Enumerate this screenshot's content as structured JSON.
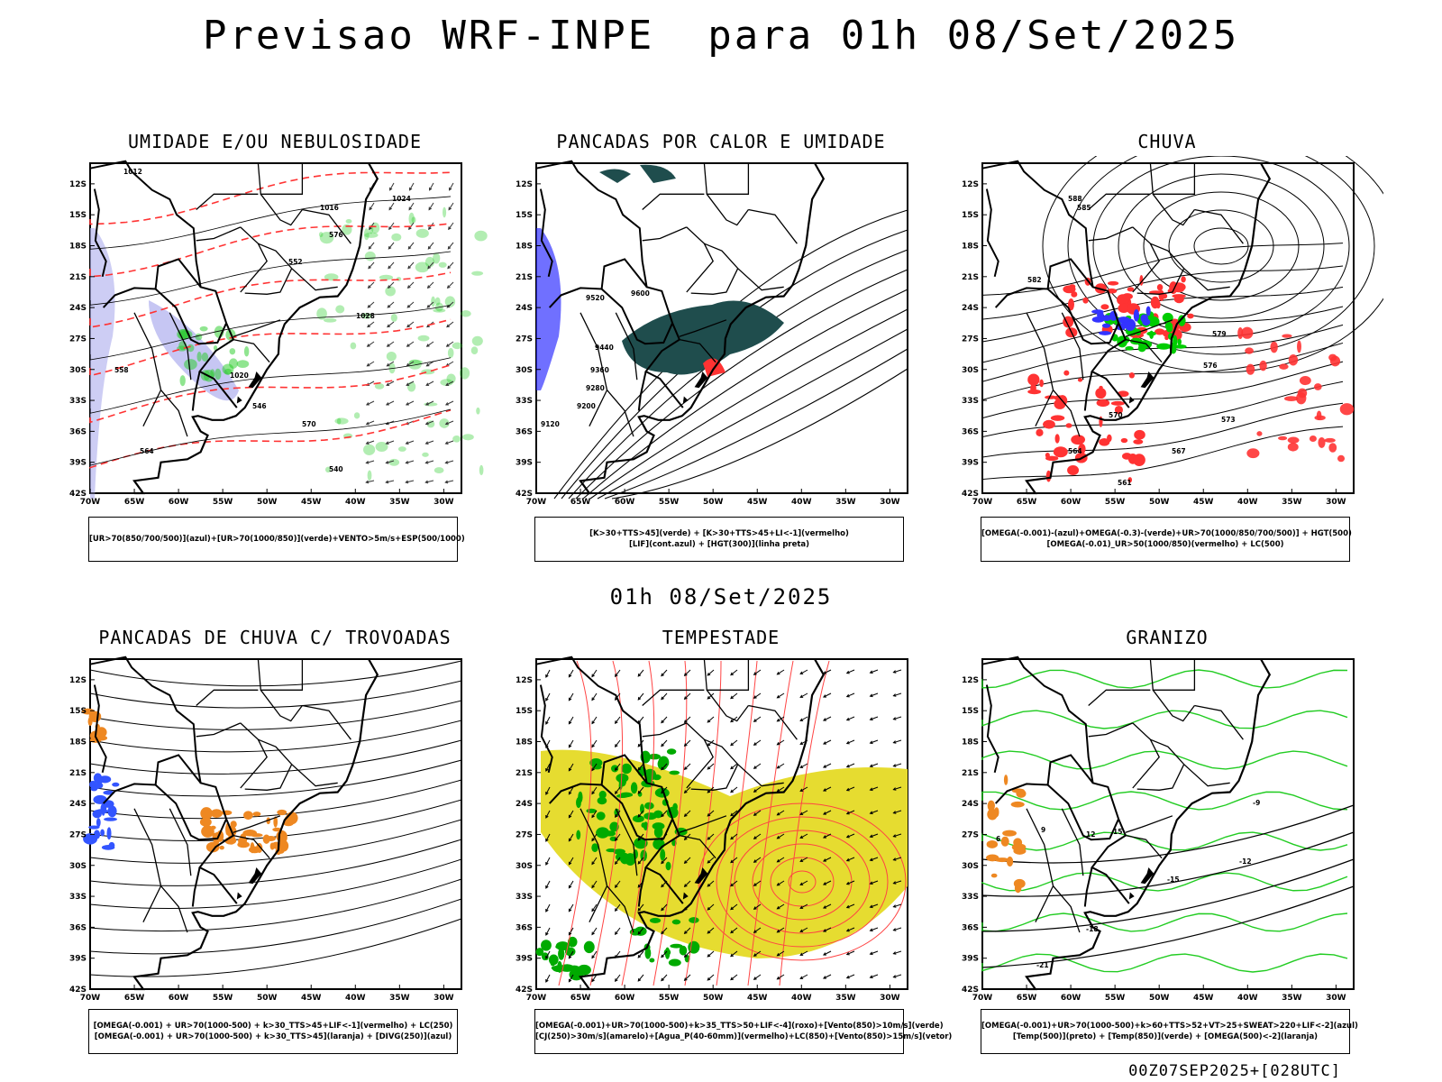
{
  "header": {
    "title": "Previsao WRF-INPE  para 01h 08/Set/2025",
    "mid_stamp": "01h 08/Set/2025",
    "footer_stamp": "00Z07SEP2025+[028UTC]"
  },
  "axes": {
    "lat_ticks": [
      "12S",
      "15S",
      "18S",
      "21S",
      "24S",
      "27S",
      "30S",
      "33S",
      "36S",
      "39S",
      "42S"
    ],
    "lon_ticks": [
      "70W",
      "65W",
      "60W",
      "55W",
      "50W",
      "45W",
      "40W",
      "35W",
      "30W"
    ]
  },
  "chart_data": [
    {
      "type": "map",
      "title": "UMIDADE E/OU NEBULOSIDADE",
      "legend_lines": [
        "[UR>70(850/700/500)](azul)+[UR>70(1000/850)](verde)+VENTO>5m/s+ESP(500/1000)"
      ],
      "contour_labels": [
        "1012",
        "1016",
        "1020",
        "1024",
        "1028",
        "540",
        "546",
        "552",
        "558",
        "564",
        "570",
        "576"
      ],
      "colors": {
        "humid_upper": "#b8b8f0",
        "humid_lower": "#22cc22",
        "thickness": "#ff3333",
        "pressure": "#000000"
      }
    },
    {
      "type": "map",
      "title": "PANCADAS POR CALOR E UMIDADE",
      "legend_lines": [
        "[K>30+TTS>45](verde) + [K>30+TTS>45+LI<-1](vermelho)",
        "[LIF](cont.azul) + [HGT(300)](linha preta)"
      ],
      "contour_labels": [
        "9120",
        "9200",
        "9280",
        "9360",
        "9440",
        "9520",
        "9600"
      ],
      "colors": {
        "convection": "#1f4d4d",
        "unstable": "#ff3333",
        "lif": "#3333ff",
        "height": "#000000"
      }
    },
    {
      "type": "map",
      "title": "CHUVA",
      "legend_lines": [
        "[OMEGA(-0.001)-(azul)+OMEGA(-0.3)-(verde)+UR>70(1000/850/700/500)] + HGT(500)",
        "[OMEGA(-0.01)_UR>50(1000/850)(vermelho) + LC(500)"
      ],
      "contour_labels": [
        "561",
        "564",
        "567",
        "570",
        "573",
        "576",
        "579",
        "582",
        "585",
        "588"
      ],
      "colors": {
        "weak_omega": "#3333ff",
        "strong_omega": "#00cc00",
        "rain": "#ff3333",
        "height": "#000000"
      }
    },
    {
      "type": "map",
      "title": "PANCADAS DE CHUVA C/ TROVOADAS",
      "legend_lines": [
        "[OMEGA(-0.001) + UR>70(1000-500) + k>30_TTS>45+LIF<-1](vermelho) + LC(250)",
        "[OMEGA(-0.001) + UR>70(1000-500) + k>30_TTS>45](laranja) + [DIVG(250)](azul)"
      ],
      "colors": {
        "storms": "#ee8822",
        "divergence": "#3355ff",
        "streamlines": "#000000"
      }
    },
    {
      "type": "map",
      "title": "TEMPESTADE",
      "legend_lines": [
        "[OMEGA(-0.001)+UR>70(1000-500)+k>35_TTS>50+LIF<-4](roxo)+[Vento(850)>10m/s](verde)",
        "[CJ(250)>30m/s](amarelo)+[Agua_P(40-60mm)](vermelho)+LC(850)+[Vento(850)>15m/s](vetor)"
      ],
      "colors": {
        "jet": "#e6dc30",
        "wind850": "#00aa00",
        "precip_water": "#ff4444",
        "vectors": "#000000"
      }
    },
    {
      "type": "map",
      "title": "GRANIZO",
      "legend_lines": [
        "[OMEGA(-0.001)+UR>70(1000-500)+k>60+TTS>52+VT>25+SWEAT>220+LIF<-2](azul)",
        "[Temp(500)](preto) + [Temp(850)](verde) + [OMEGA(500)<-2](laranja)"
      ],
      "contour_labels": [
        "-21",
        "-18",
        "-15",
        "-12",
        "-9",
        "6",
        "9",
        "12",
        "15"
      ],
      "colors": {
        "temp850": "#22cc22",
        "temp500": "#000000",
        "omega500": "#ee8822"
      }
    }
  ]
}
